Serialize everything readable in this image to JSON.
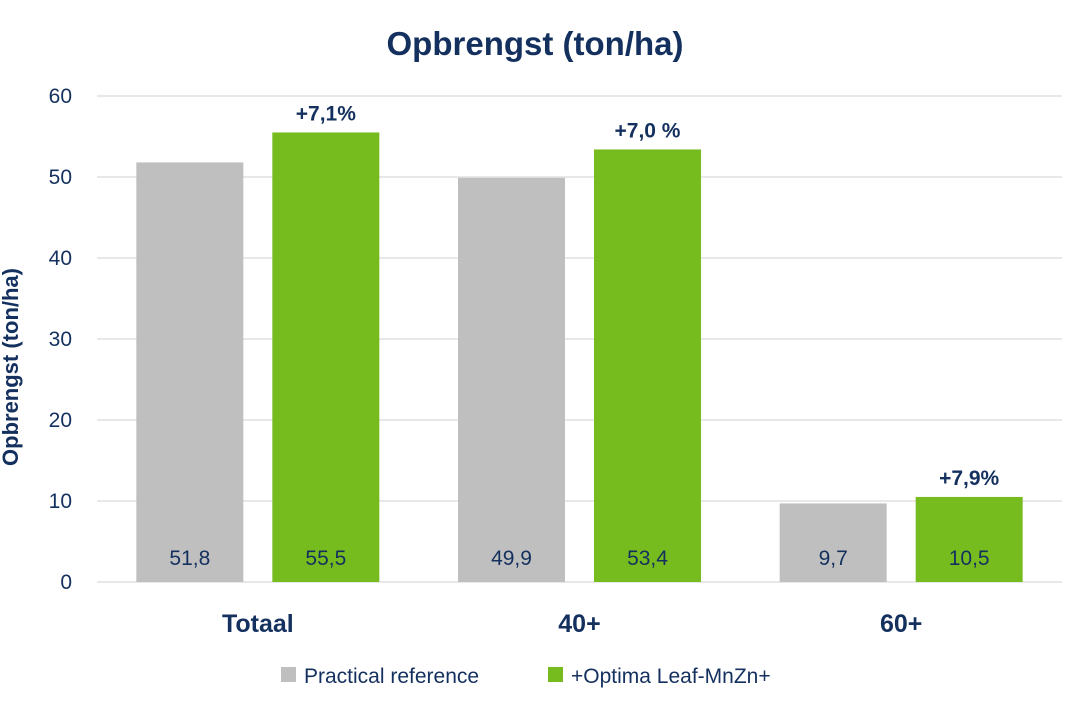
{
  "chart_data": {
    "type": "bar",
    "title": "Opbrengst (ton/ha)",
    "xlabel": "",
    "ylabel": "Opbrengst (ton/ha)",
    "ylim": [
      0,
      60
    ],
    "yticks": [
      0,
      10,
      20,
      30,
      40,
      50,
      60
    ],
    "grid": true,
    "legend_position": "bottom",
    "categories": [
      "Totaal",
      "40+",
      "60+"
    ],
    "series": [
      {
        "name": "Practical reference",
        "color": "#bfbfbf",
        "values": [
          51.8,
          49.9,
          9.7
        ],
        "labels": [
          "51,8",
          "49,9",
          "9,7"
        ]
      },
      {
        "name": "+Optima Leaf-MnZn+",
        "color": "#77bc1f",
        "values": [
          55.5,
          53.4,
          10.5
        ],
        "labels": [
          "55,5",
          "53,4",
          "10,5"
        ]
      }
    ],
    "annotations": [
      "+7,1%",
      "+7,0 %",
      "+7,9%"
    ],
    "colors": {
      "text": "#14305e",
      "grid": "#d9d9d9"
    }
  }
}
